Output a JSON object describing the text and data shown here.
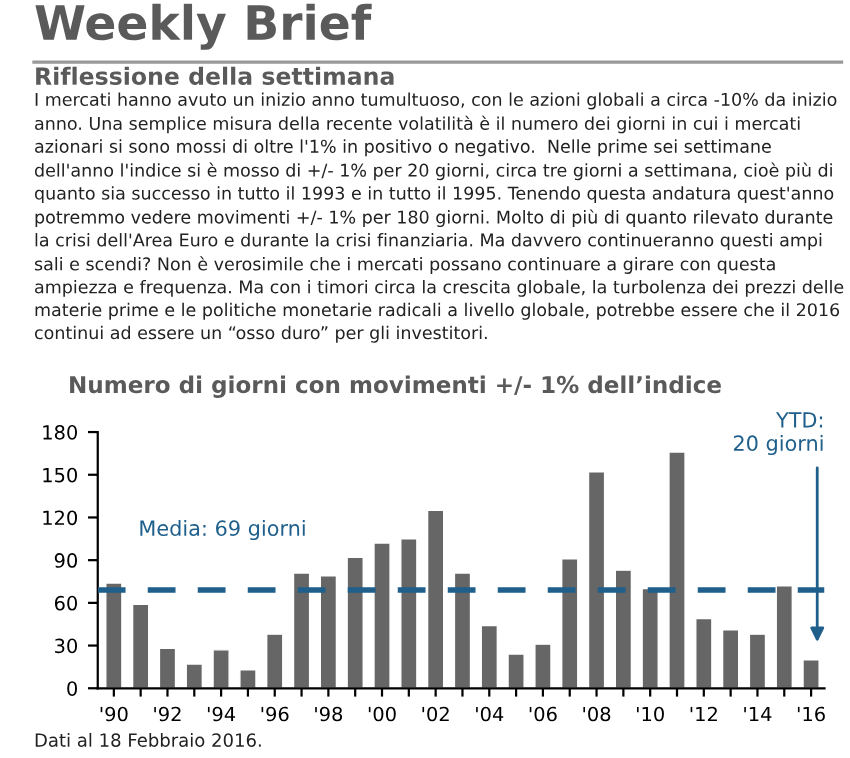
{
  "chart_data": {
    "type": "bar",
    "title": "Weekly Brief",
    "subtitle": "Riflessione della settimana",
    "annotations": [
      "I mercati hanno avuto un inizio anno tumultuoso, con le azioni globali a circa -10% da inizio anno. Una semplice misura della recente volatilità è il numero dei giorni in cui i mercati azionari si sono mossi di oltre l'1% in positivo o negativo.  Nelle prime sei settimane dell'anno l'indice si è mosso di +/- 1% per 20 giorni, circa tre giorni a settimana, cioè più di quanto sia successo in tutto il 1993 e in tutto il 1995. Tenendo questa andatura quest'anno potremmo vedere movimenti +/- 1% per 180 giorni. Molto di più di quanto rilevato durante la crisi dell'Area Euro e durante la crisi finanziaria. Ma davvero continueranno questi ampi sali e scendi? Non è verosimile che i mercati possano continuare a girare con questa ampiezza e frequenza. Ma con i timori circa la crescita globale, la turbolenza dei prezzi delle materie prime e le politiche monetarie radicali a livello globale, potrebbe essere che il 2016 continui ad essere un “osso duro” per gli investitori.",
      "Numero di giorni con movimenti +/- 1% dell’indice",
      "YTD:\n20 giorni",
      "Dati al 18 Febbraio 2016."
    ],
    "categories": [
      "'90",
      null,
      "'92",
      null,
      "'94",
      null,
      "'96",
      null,
      "'98",
      null,
      "'00",
      null,
      "'02",
      null,
      "'04",
      null,
      "'06",
      null,
      "'08",
      null,
      "'10",
      null,
      "'12",
      null,
      "'14",
      null,
      "'16"
    ],
    "values": [
      74,
      59,
      28,
      17,
      27,
      13,
      38,
      81,
      79,
      92,
      102,
      105,
      125,
      81,
      44,
      24,
      31,
      91,
      152,
      83,
      70,
      166,
      49,
      41,
      38,
      72,
      20
    ],
    "color": "#666666",
    "ylim": [
      0,
      180
    ],
    "yticks": [
      0,
      30,
      60,
      90,
      120,
      150,
      180
    ],
    "grid": false,
    "legend": false,
    "ref_lines": [
      {
        "axis": "y",
        "value": 69,
        "label": "Media: 69 giorni",
        "color": "#1f5f8b",
        "line_style": "dashed"
      }
    ]
  }
}
